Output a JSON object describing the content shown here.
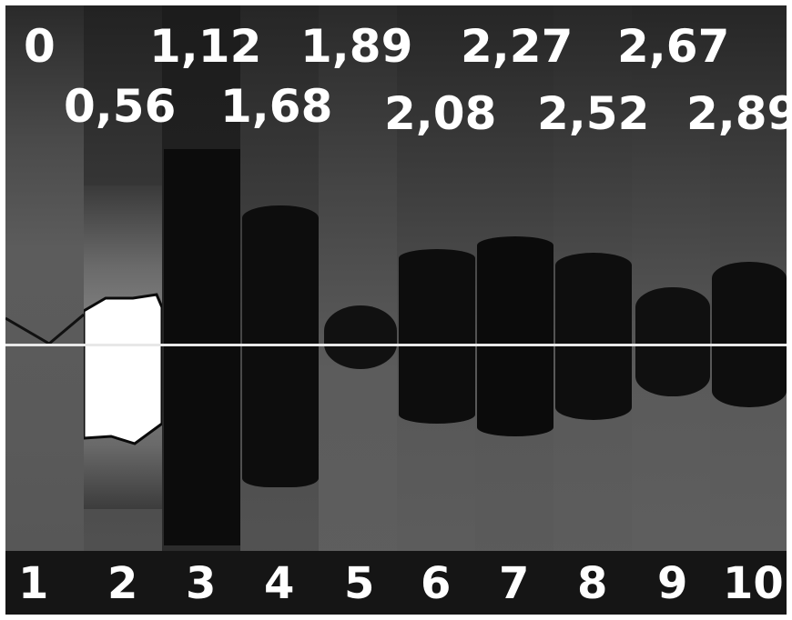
{
  "values_top_row": [
    "0",
    "1,12",
    "1,89",
    "2,27",
    "2,67"
  ],
  "values_second_row": [
    "0,56",
    "1,68",
    "2,08",
    "2,52",
    "2,89"
  ],
  "panels": [
    "1",
    "2",
    "3",
    "4",
    "5",
    "6",
    "7",
    "8",
    "9",
    "10"
  ],
  "colors": {
    "background_dark": "#111111",
    "strip_gray": "#5a5a5a",
    "dark_region": "#0a0a0a",
    "bright_region": "#ffffff",
    "text": "#ffffff",
    "midline": "#e8e8e8"
  }
}
